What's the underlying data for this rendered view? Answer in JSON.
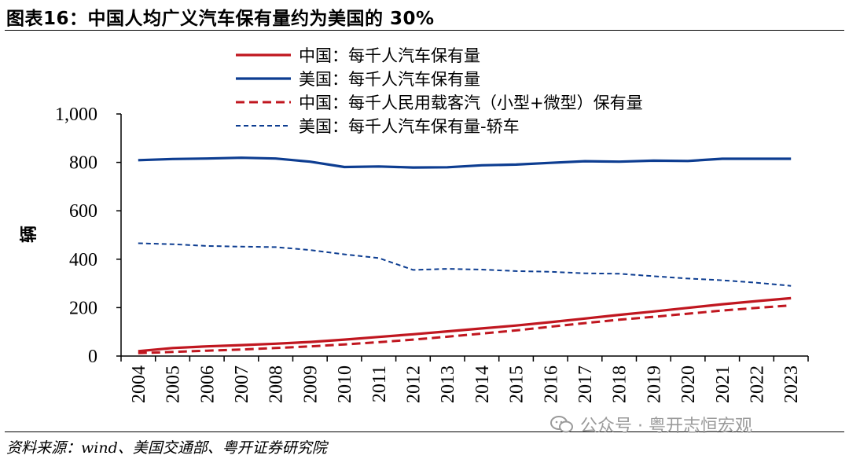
{
  "header": {
    "title": "图表16：中国人均广义汽车保有量约为美国的 30%"
  },
  "footer": {
    "source": "资料来源：wind、美国交通部、粤开证券研究院",
    "watermark": "公众号 · 粤开志恒宏观"
  },
  "chart_data": {
    "type": "line",
    "x": [
      "2004",
      "2005",
      "2006",
      "2007",
      "2008",
      "2009",
      "2010",
      "2011",
      "2012",
      "2013",
      "2014",
      "2015",
      "2016",
      "2017",
      "2018",
      "2019",
      "2020",
      "2021",
      "2022",
      "2023"
    ],
    "ylabel": "辆",
    "ylim": [
      0,
      1000
    ],
    "yticks": [
      0,
      200,
      400,
      600,
      800,
      1000
    ],
    "ytick_labels": [
      "0",
      "200",
      "400",
      "600",
      "800",
      "1,000"
    ],
    "grid": false,
    "legend_position": "top",
    "series": [
      {
        "name": "中国：每千人汽车保有量",
        "color": "#c0161f",
        "style": "solid",
        "values": [
          20,
          33,
          40,
          45,
          51,
          58,
          68,
          79,
          90,
          102,
          114,
          126,
          140,
          155,
          170,
          184,
          199,
          214,
          227,
          239
        ]
      },
      {
        "name": "美国：每千人汽车保有量",
        "color": "#0d3d91",
        "style": "solid",
        "values": [
          809,
          814,
          816,
          819,
          816,
          803,
          781,
          783,
          779,
          780,
          788,
          791,
          798,
          805,
          803,
          807,
          806,
          815,
          815,
          815
        ]
      },
      {
        "name": "中国：每千人民用载客汽（小型+微型）保有量",
        "color": "#c0161f",
        "style": "dashed",
        "values": [
          12,
          17,
          22,
          27,
          33,
          40,
          48,
          57,
          68,
          80,
          93,
          106,
          121,
          136,
          150,
          162,
          175,
          188,
          199,
          209
        ]
      },
      {
        "name": "美国：每千人汽车保有量-轿车",
        "color": "#0d3d91",
        "style": "dotted",
        "values": [
          466,
          462,
          455,
          452,
          450,
          438,
          420,
          405,
          356,
          360,
          357,
          351,
          348,
          342,
          340,
          330,
          320,
          313,
          303,
          290
        ]
      }
    ]
  }
}
